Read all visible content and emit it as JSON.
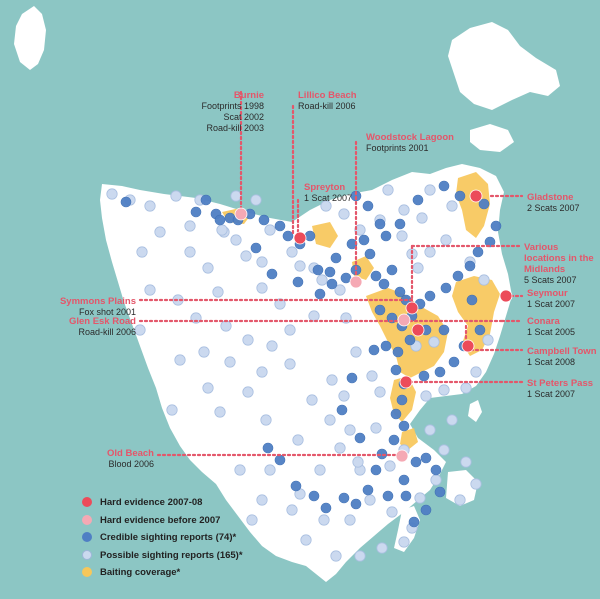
{
  "colors": {
    "sea": "#8cc6c4",
    "land": "#ffffff",
    "hard_recent": "#ec4b5a",
    "hard_before": "#f5a9b4",
    "credible": "#4f7fc4",
    "possible": "#cbd9ef",
    "baiting": "#f7c75a",
    "leader": "#e4566a"
  },
  "sites": [
    {
      "name": "Burnie",
      "details": [
        "Footprints 1998",
        "Scat 2002",
        "Road-kill 2003"
      ]
    },
    {
      "name": "Lillico Beach",
      "details": [
        "Road-kill 2006"
      ]
    },
    {
      "name": "Woodstock Lagoon",
      "details": [
        "Footprints 2001"
      ]
    },
    {
      "name": "Spreyton",
      "details": [
        "1 Scat 2007"
      ]
    },
    {
      "name": "Gladstone",
      "details": [
        "2 Scats 2007"
      ]
    },
    {
      "name": "Various locations in the Midlands",
      "details": [
        "5 Scats 2007"
      ]
    },
    {
      "name": "Symmons Plains",
      "details": [
        "Fox shot 2001"
      ]
    },
    {
      "name": "Glen Esk Road",
      "details": [
        "Road-kill 2006"
      ]
    },
    {
      "name": "Seymour",
      "details": [
        "1 Scat 2007"
      ]
    },
    {
      "name": "Conara",
      "details": [
        "1 Scat 2005"
      ]
    },
    {
      "name": "Campbell Town",
      "details": [
        "1 Scat 2008"
      ]
    },
    {
      "name": "St Peters Pass",
      "details": [
        "1 Scat 2007"
      ]
    },
    {
      "name": "Old Beach",
      "details": [
        "Blood 2006"
      ]
    }
  ],
  "legend": [
    {
      "label": "Hard evidence 2007-08",
      "color": "#ec4b5a"
    },
    {
      "label": "Hard evidence before 2007",
      "color": "#f5a9b4"
    },
    {
      "label": "Credible sighting reports (74)*",
      "color": "#4f7fc4"
    },
    {
      "label": "Possible sighting reports (165)*",
      "color": "#cbd9ef"
    },
    {
      "label": "Baiting coverage*",
      "color": "#f7c75a"
    }
  ]
}
